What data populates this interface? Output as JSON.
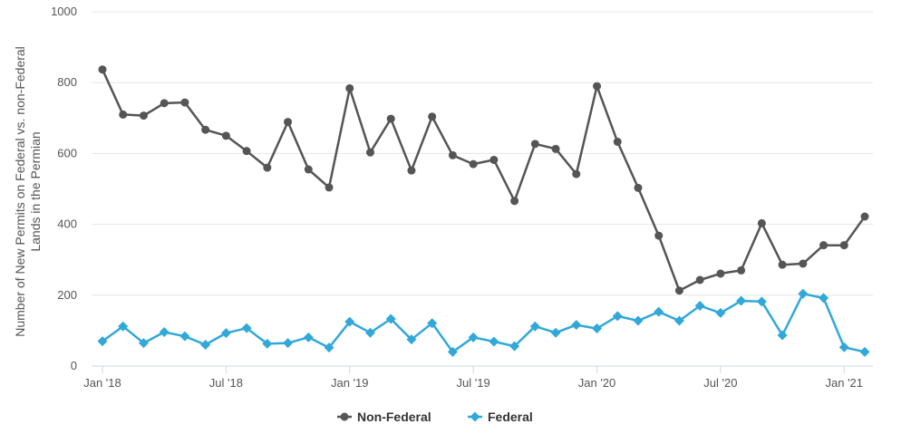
{
  "chart_data": {
    "type": "line",
    "title": "",
    "xlabel": "",
    "ylabel": "Number of New Permits on Federal vs. non-Federal Lands in the Permian",
    "ylim": [
      0,
      1000
    ],
    "y_ticks": [
      0,
      200,
      400,
      600,
      800,
      1000
    ],
    "y_tick_labels": [
      "0",
      "200",
      "400",
      "600",
      "800",
      "1000"
    ],
    "x_tick_labels": [
      "Jan '18",
      "Jul '18",
      "Jan '19",
      "Jul '19",
      "Jan '20",
      "Jul '20",
      "Jan '21"
    ],
    "x": [
      "2018-01",
      "2018-02",
      "2018-03",
      "2018-04",
      "2018-05",
      "2018-06",
      "2018-07",
      "2018-08",
      "2018-09",
      "2018-10",
      "2018-11",
      "2018-12",
      "2019-01",
      "2019-02",
      "2019-03",
      "2019-04",
      "2019-05",
      "2019-06",
      "2019-07",
      "2019-08",
      "2019-09",
      "2019-10",
      "2019-11",
      "2019-12",
      "2020-01",
      "2020-02",
      "2020-03",
      "2020-04",
      "2020-05",
      "2020-06",
      "2020-07",
      "2020-08",
      "2020-09",
      "2020-10",
      "2020-11",
      "2020-12",
      "2021-01",
      "2021-02"
    ],
    "grid": true,
    "legend_position": "bottom-center",
    "series": [
      {
        "name": "Non-Federal",
        "color": "#555555",
        "marker": "circle",
        "values": [
          837,
          710,
          707,
          742,
          744,
          667,
          650,
          607,
          560,
          689,
          555,
          504,
          784,
          603,
          698,
          552,
          704,
          595,
          570,
          582,
          466,
          627,
          613,
          542,
          790,
          633,
          503,
          368,
          213,
          243,
          261,
          270,
          403,
          286,
          289,
          341,
          341,
          422
        ]
      },
      {
        "name": "Federal",
        "color": "#31a8d8",
        "marker": "diamond",
        "values": [
          70,
          112,
          65,
          96,
          84,
          60,
          93,
          107,
          63,
          65,
          81,
          52,
          125,
          94,
          133,
          75,
          121,
          40,
          81,
          69,
          56,
          112,
          94,
          116,
          106,
          141,
          128,
          153,
          128,
          170,
          150,
          184,
          182,
          87,
          204,
          192,
          53,
          40
        ]
      }
    ]
  }
}
